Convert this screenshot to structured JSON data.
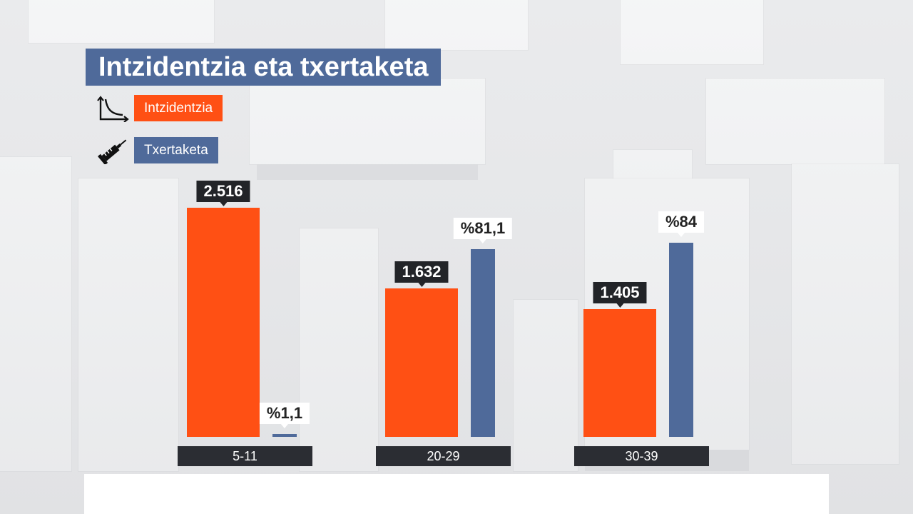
{
  "chart_data": {
    "type": "bar",
    "title": "Intzidentzia eta txertaketa",
    "categories": [
      "5-11",
      "20-29",
      "30-39"
    ],
    "series": [
      {
        "name": "Intzidentzia",
        "values": [
          2516,
          1632,
          1405
        ],
        "labels": [
          "2.516",
          "1.632",
          "1.405"
        ],
        "color": "#ff5014"
      },
      {
        "name": "Txertaketa",
        "values": [
          1.1,
          81.1,
          84
        ],
        "labels": [
          "%1,1",
          "%81,1",
          "%84"
        ],
        "color": "#4f6a9a"
      }
    ]
  },
  "legend": {
    "incidence_icon": "curve-axes-icon",
    "vaccination_icon": "syringe-icon"
  }
}
